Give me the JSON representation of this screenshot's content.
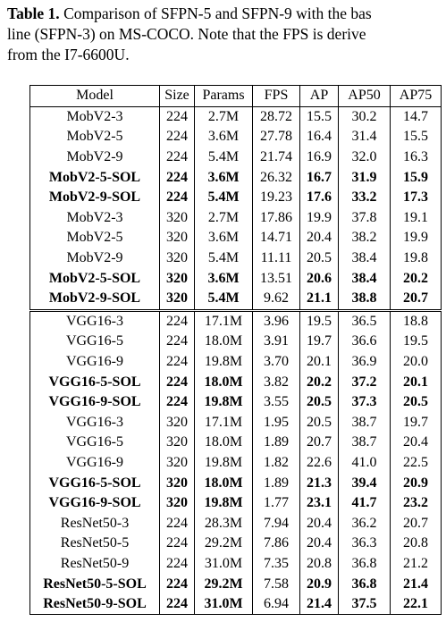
{
  "caption": {
    "label": "Table 1.",
    "lines": [
      "Comparison of SFPN-5 and SFPN-9 with the bas",
      "line (SFPN-3) on MS-COCO. Note that the FPS is derive",
      "from the I7-6600U."
    ]
  },
  "table": {
    "header": [
      "Model",
      "Size",
      "Params",
      "FPS",
      "AP",
      "AP50",
      "AP75"
    ],
    "groups": [
      [
        {
          "bold": false,
          "cells": [
            "MobV2-3",
            "224",
            "2.7M",
            "28.72",
            "15.5",
            "30.2",
            "14.7"
          ]
        },
        {
          "bold": false,
          "cells": [
            "MobV2-5",
            "224",
            "3.6M",
            "27.78",
            "16.4",
            "31.4",
            "15.5"
          ]
        },
        {
          "bold": false,
          "cells": [
            "MobV2-9",
            "224",
            "5.4M",
            "21.74",
            "16.9",
            "32.0",
            "16.3"
          ]
        },
        {
          "bold": true,
          "cells": [
            "MobV2-5-SOL",
            "224",
            "3.6M",
            "26.32",
            "16.7",
            "31.9",
            "15.9"
          ]
        },
        {
          "bold": true,
          "cells": [
            "MobV2-9-SOL",
            "224",
            "5.4M",
            "19.23",
            "17.6",
            "33.2",
            "17.3"
          ]
        },
        {
          "bold": false,
          "cells": [
            "MobV2-3",
            "320",
            "2.7M",
            "17.86",
            "19.9",
            "37.8",
            "19.1"
          ]
        },
        {
          "bold": false,
          "cells": [
            "MobV2-5",
            "320",
            "3.6M",
            "14.71",
            "20.4",
            "38.2",
            "19.9"
          ]
        },
        {
          "bold": false,
          "cells": [
            "MobV2-9",
            "320",
            "5.4M",
            "11.11",
            "20.5",
            "38.4",
            "19.8"
          ]
        },
        {
          "bold": true,
          "cells": [
            "MobV2-5-SOL",
            "320",
            "3.6M",
            "13.51",
            "20.6",
            "38.4",
            "20.2"
          ]
        },
        {
          "bold": true,
          "cells": [
            "MobV2-9-SOL",
            "320",
            "5.4M",
            "9.62",
            "21.1",
            "38.8",
            "20.7"
          ]
        }
      ],
      [
        {
          "bold": false,
          "cells": [
            "VGG16-3",
            "224",
            "17.1M",
            "3.96",
            "19.5",
            "36.5",
            "18.8"
          ]
        },
        {
          "bold": false,
          "cells": [
            "VGG16-5",
            "224",
            "18.0M",
            "3.91",
            "19.7",
            "36.6",
            "19.5"
          ]
        },
        {
          "bold": false,
          "cells": [
            "VGG16-9",
            "224",
            "19.8M",
            "3.70",
            "20.1",
            "36.9",
            "20.0"
          ]
        },
        {
          "bold": true,
          "cells": [
            "VGG16-5-SOL",
            "224",
            "18.0M",
            "3.82",
            "20.2",
            "37.2",
            "20.1"
          ]
        },
        {
          "bold": true,
          "cells": [
            "VGG16-9-SOL",
            "224",
            "19.8M",
            "3.55",
            "20.5",
            "37.3",
            "20.5"
          ]
        },
        {
          "bold": false,
          "cells": [
            "VGG16-3",
            "320",
            "17.1M",
            "1.95",
            "20.5",
            "38.7",
            "19.7"
          ]
        },
        {
          "bold": false,
          "cells": [
            "VGG16-5",
            "320",
            "18.0M",
            "1.89",
            "20.7",
            "38.7",
            "20.4"
          ]
        },
        {
          "bold": false,
          "cells": [
            "VGG16-9",
            "320",
            "19.8M",
            "1.82",
            "22.6",
            "41.0",
            "22.5"
          ]
        },
        {
          "bold": true,
          "cells": [
            "VGG16-5-SOL",
            "320",
            "18.0M",
            "1.89",
            "21.3",
            "39.4",
            "20.9"
          ]
        },
        {
          "bold": true,
          "cells": [
            "VGG16-9-SOL",
            "320",
            "19.8M",
            "1.77",
            "23.1",
            "41.7",
            "23.2"
          ]
        },
        {
          "bold": false,
          "cells": [
            "ResNet50-3",
            "224",
            "28.3M",
            "7.94",
            "20.4",
            "36.2",
            "20.7"
          ]
        },
        {
          "bold": false,
          "cells": [
            "ResNet50-5",
            "224",
            "29.2M",
            "7.86",
            "20.4",
            "36.3",
            "20.8"
          ]
        },
        {
          "bold": false,
          "cells": [
            "ResNet50-9",
            "224",
            "31.0M",
            "7.35",
            "20.8",
            "36.8",
            "21.2"
          ]
        },
        {
          "bold": true,
          "cells": [
            "ResNet50-5-SOL",
            "224",
            "29.2M",
            "7.58",
            "20.9",
            "36.8",
            "21.4"
          ]
        },
        {
          "bold": true,
          "cells": [
            "ResNet50-9-SOL",
            "224",
            "31.0M",
            "6.94",
            "21.4",
            "37.5",
            "22.1"
          ]
        }
      ]
    ]
  }
}
